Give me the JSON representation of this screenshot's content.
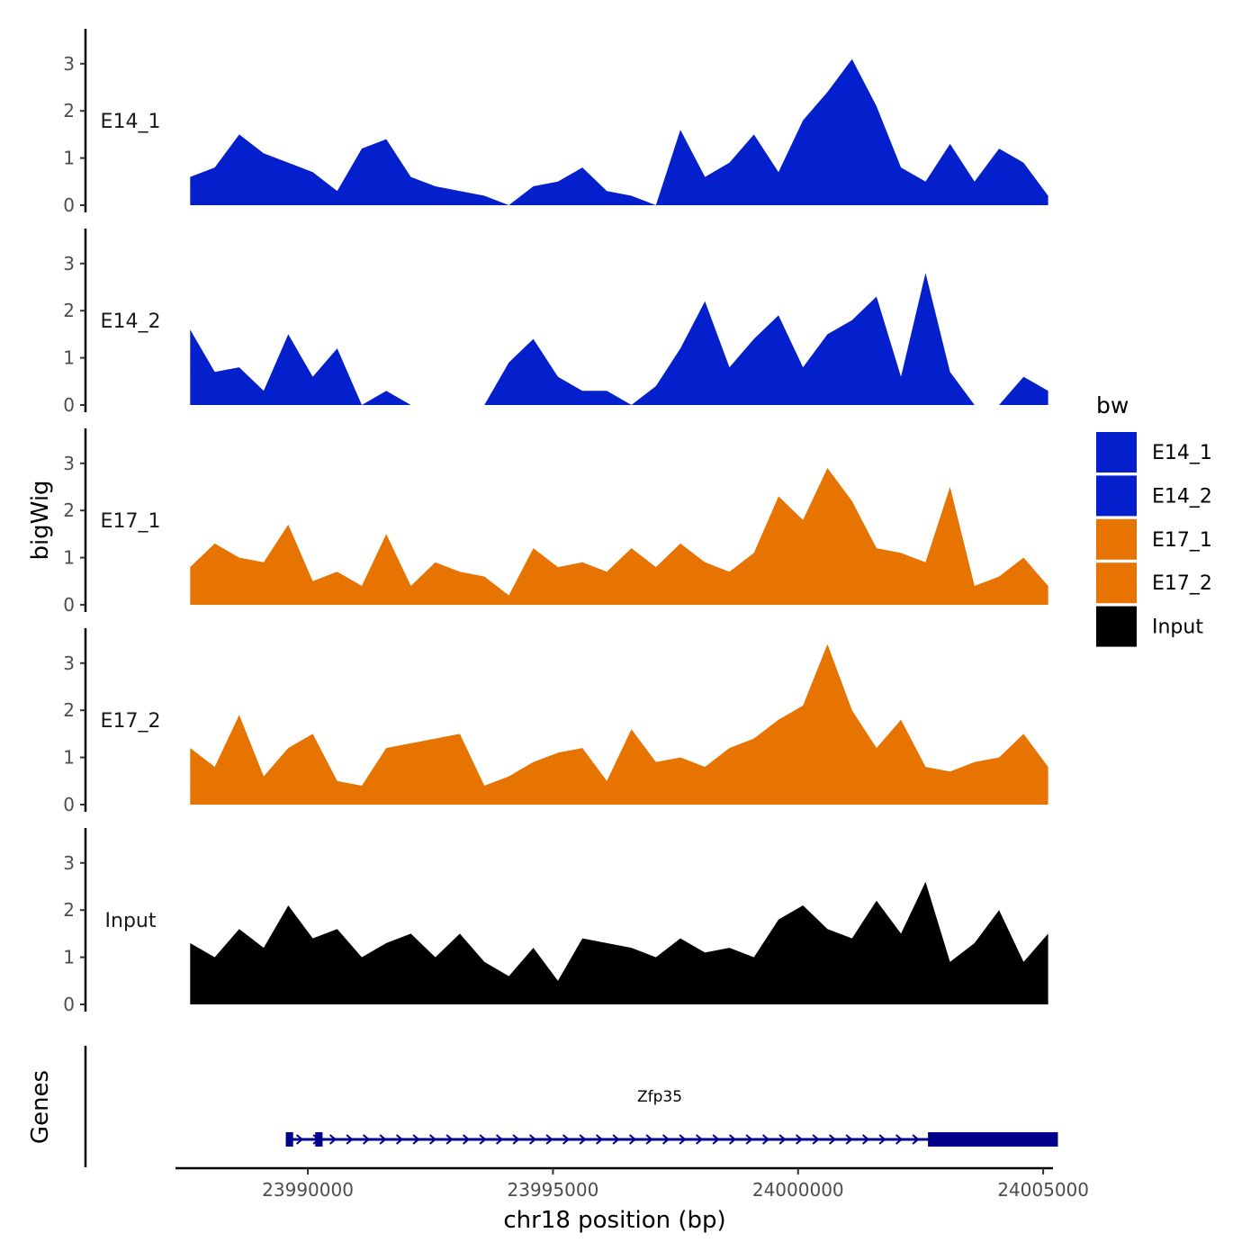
{
  "chart_data": {
    "type": "area",
    "title": "",
    "xlabel": "chr18 position (bp)",
    "ylabel": "bigWig",
    "genes_label": "Genes",
    "xlim": [
      23987300,
      24005200
    ],
    "ylim": [
      0,
      3.75
    ],
    "x_ticks": [
      {
        "value": 23990000,
        "label": "23990000"
      },
      {
        "value": 23995000,
        "label": "23995000"
      },
      {
        "value": 24000000,
        "label": "24000000"
      },
      {
        "value": 24005000,
        "label": "24005000"
      }
    ],
    "y_ticks": [
      {
        "value": 0,
        "label": "0"
      },
      {
        "value": 1,
        "label": "1"
      },
      {
        "value": 2,
        "label": "2"
      },
      {
        "value": 3,
        "label": "3"
      }
    ],
    "x": [
      23987600,
      23988100,
      23988600,
      23989100,
      23989600,
      23990100,
      23990600,
      23991100,
      23991600,
      23992100,
      23992600,
      23993100,
      23993600,
      23994100,
      23994600,
      23995100,
      23995600,
      23996100,
      23996600,
      23997100,
      23997600,
      23998100,
      23998600,
      23999100,
      23999600,
      24000100,
      24000600,
      24001100,
      24001600,
      24002100,
      24002600,
      24003100,
      24003600,
      24004100,
      24004600,
      24005100
    ],
    "series": [
      {
        "name": "E14_1",
        "color": "#0420CC",
        "values": [
          0.6,
          0.8,
          1.5,
          1.1,
          0.9,
          0.7,
          0.3,
          1.2,
          1.4,
          0.6,
          0.4,
          0.3,
          0.2,
          0.0,
          0.4,
          0.5,
          0.8,
          0.3,
          0.2,
          0.0,
          1.6,
          0.6,
          0.9,
          1.5,
          0.7,
          1.8,
          2.4,
          3.1,
          2.1,
          0.8,
          0.5,
          1.3,
          0.5,
          1.2,
          0.9,
          0.2
        ]
      },
      {
        "name": "E14_2",
        "color": "#0420CC",
        "values": [
          1.6,
          0.7,
          0.8,
          0.3,
          1.5,
          0.6,
          1.2,
          0.0,
          0.3,
          0.0,
          0.0,
          0.0,
          0.0,
          0.9,
          1.4,
          0.6,
          0.3,
          0.3,
          0.0,
          0.4,
          1.2,
          2.2,
          0.8,
          1.4,
          1.9,
          0.8,
          1.5,
          1.8,
          2.3,
          0.6,
          2.8,
          0.7,
          0.0,
          0.0,
          0.6,
          0.3
        ]
      },
      {
        "name": "E17_1",
        "color": "#E77300",
        "values": [
          0.8,
          1.3,
          1.0,
          0.9,
          1.7,
          0.5,
          0.7,
          0.4,
          1.5,
          0.4,
          0.9,
          0.7,
          0.6,
          0.2,
          1.2,
          0.8,
          0.9,
          0.7,
          1.2,
          0.8,
          1.3,
          0.9,
          0.7,
          1.1,
          2.3,
          1.8,
          2.9,
          2.2,
          1.2,
          1.1,
          0.9,
          2.5,
          0.4,
          0.6,
          1.0,
          0.4
        ]
      },
      {
        "name": "E17_2",
        "color": "#E77300",
        "values": [
          1.2,
          0.8,
          1.9,
          0.6,
          1.2,
          1.5,
          0.5,
          0.4,
          1.2,
          1.3,
          1.4,
          1.5,
          0.4,
          0.6,
          0.9,
          1.1,
          1.2,
          0.5,
          1.6,
          0.9,
          1.0,
          0.8,
          1.2,
          1.4,
          1.8,
          2.1,
          3.4,
          2.0,
          1.2,
          1.8,
          0.8,
          0.7,
          0.9,
          1.0,
          1.5,
          0.8
        ]
      },
      {
        "name": "Input",
        "color": "#000000",
        "values": [
          1.3,
          1.0,
          1.6,
          1.2,
          2.1,
          1.4,
          1.6,
          1.0,
          1.3,
          1.5,
          1.0,
          1.5,
          0.9,
          0.6,
          1.2,
          0.5,
          1.4,
          1.3,
          1.2,
          1.0,
          1.4,
          1.1,
          1.2,
          1.0,
          1.8,
          2.1,
          1.6,
          1.4,
          2.2,
          1.5,
          2.6,
          0.9,
          1.3,
          2.0,
          0.9,
          1.5
        ]
      }
    ],
    "legend": {
      "title": "bw",
      "position": "right",
      "entries": [
        {
          "label": "E14_1",
          "color": "#0420CC"
        },
        {
          "label": "E14_2",
          "color": "#0420CC"
        },
        {
          "label": "E17_1",
          "color": "#E77300"
        },
        {
          "label": "E17_2",
          "color": "#E77300"
        },
        {
          "label": "Input",
          "color": "#000000"
        }
      ]
    },
    "gene": {
      "name": "Zfp35",
      "strand": "+",
      "color": "#00008B",
      "start": 23989550,
      "end": 24005300,
      "exons": [
        {
          "start": 23989550,
          "end": 23989700
        },
        {
          "start": 23990150,
          "end": 23990300
        },
        {
          "start": 24002650,
          "end": 24005300
        }
      ]
    }
  }
}
